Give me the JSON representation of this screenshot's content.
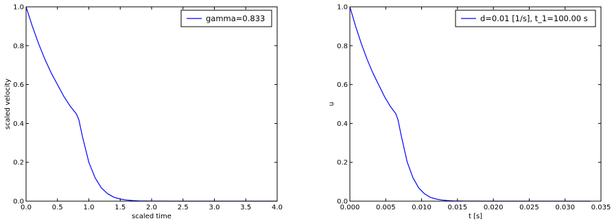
{
  "chart_data": [
    {
      "type": "line",
      "title": "",
      "xlabel": "scaled time",
      "ylabel": "scaled velocity",
      "xlim": [
        0.0,
        4.0
      ],
      "ylim": [
        0.0,
        1.0
      ],
      "x_ticks": [
        "0.0",
        "0.5",
        "1.0",
        "1.5",
        "2.0",
        "2.5",
        "3.0",
        "3.5",
        "4.0"
      ],
      "y_ticks": [
        "0.0",
        "0.2",
        "0.4",
        "0.6",
        "0.8",
        "1.0"
      ],
      "grid": false,
      "legend_position": "top-right",
      "series": [
        {
          "name": "gamma=0.833",
          "color": "#0000ff",
          "x": [
            0.0,
            0.1,
            0.2,
            0.3,
            0.4,
            0.5,
            0.6,
            0.7,
            0.8,
            0.84,
            0.9,
            1.0,
            1.1,
            1.2,
            1.3,
            1.4,
            1.5,
            1.6,
            1.7,
            1.8,
            1.9,
            2.0,
            2.5,
            3.0,
            3.5,
            4.0
          ],
          "y": [
            1.0,
            0.9,
            0.81,
            0.73,
            0.66,
            0.6,
            0.54,
            0.49,
            0.45,
            0.42,
            0.33,
            0.2,
            0.12,
            0.068,
            0.038,
            0.02,
            0.011,
            0.006,
            0.003,
            0.0015,
            0.0008,
            0.0004,
            0.0,
            0.0,
            0.0,
            0.0
          ]
        }
      ]
    },
    {
      "type": "line",
      "title": "",
      "xlabel": "t [s]",
      "ylabel": "u",
      "xlim": [
        0.0,
        0.035
      ],
      "ylim": [
        0.0,
        1.0
      ],
      "x_ticks": [
        "0.000",
        "0.005",
        "0.010",
        "0.015",
        "0.020",
        "0.025",
        "0.030",
        "0.035"
      ],
      "y_ticks": [
        "0.0",
        "0.2",
        "0.4",
        "0.6",
        "0.8",
        "1.0"
      ],
      "grid": false,
      "legend_position": "top-right",
      "series": [
        {
          "name": "d=0.01 [1/s], t_1=100.00 s",
          "color": "#0000ff",
          "x": [
            0.0,
            0.0008,
            0.0016,
            0.0024,
            0.0032,
            0.004,
            0.0048,
            0.0056,
            0.0064,
            0.0067,
            0.0072,
            0.008,
            0.0088,
            0.0096,
            0.0104,
            0.0112,
            0.012,
            0.0128,
            0.0136,
            0.0144,
            0.0152,
            0.016,
            0.02,
            0.025,
            0.03,
            0.0335
          ],
          "y": [
            1.0,
            0.9,
            0.81,
            0.73,
            0.66,
            0.6,
            0.54,
            0.49,
            0.45,
            0.42,
            0.33,
            0.2,
            0.12,
            0.068,
            0.038,
            0.02,
            0.011,
            0.006,
            0.003,
            0.0015,
            0.0008,
            0.0004,
            0.0,
            0.0,
            0.0,
            0.0
          ]
        }
      ]
    }
  ]
}
